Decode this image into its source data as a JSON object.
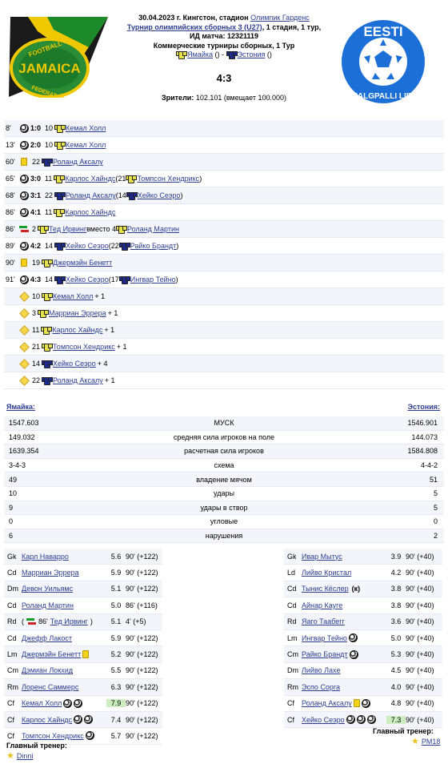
{
  "match": {
    "date_place": "30.04.2023 г. Кингстон, стадион",
    "stadium": "Олимпик Гарденс",
    "tournament": "Турнир олимпийских сборных 3 (U27)",
    "stage": ", 1 стадия, 1 тур,",
    "id_label": "ИД матча: 12321119",
    "commercial": "Коммерческие турниры сборных, 1 Тур",
    "home_link": "Ямайка",
    "home_paren": " () - ",
    "away_link": "Эстония",
    "away_paren": " ()",
    "score": "4:3",
    "attendance_label": "Зрители:",
    "attendance_value": " 102.101 (вмещает 100.000)"
  },
  "logos": {
    "left": "JAMAICA FOOTBALL FEDERATION",
    "right": "EESTI JALGPALLI LIIT"
  },
  "events": [
    {
      "min": "8'",
      "type": "goal",
      "score": "1:0",
      "num": "10",
      "team": "jam",
      "player": "Кемал Холл"
    },
    {
      "min": "13'",
      "type": "goal",
      "score": "2:0",
      "num": "10",
      "team": "jam",
      "player": "Кемал Холл"
    },
    {
      "min": "60'",
      "type": "card",
      "num": "22",
      "team": "est",
      "player": "Роланд Аксалу"
    },
    {
      "min": "65'",
      "type": "goal",
      "score": "3:0",
      "num": "11",
      "team": "jam",
      "player": "Карлос Хайндс",
      "assist_prefix": " (21 ",
      "assist_team": "jam",
      "assist": "Томпсон Хендрикс",
      "assist_suffix": ")"
    },
    {
      "min": "68'",
      "type": "goal",
      "score": "3:1",
      "num": "22",
      "team": "est",
      "player": "Роланд Аксалу",
      "assist_prefix": " (14 ",
      "assist_team": "est",
      "assist": "Хейко Сеэро",
      "assist_suffix": ")"
    },
    {
      "min": "86'",
      "type": "goal",
      "score": "4:1",
      "num": "11",
      "team": "jam",
      "player": "Карлос Хайндс"
    },
    {
      "min": "86'",
      "type": "sub",
      "num": "2",
      "team": "jam",
      "player": "Тед Ирвинг",
      "sub_text": " вместо 4 ",
      "sub_team": "jam",
      "sub_player": "Роланд Мартин"
    },
    {
      "min": "89'",
      "type": "goal",
      "score": "4:2",
      "num": "14",
      "team": "est",
      "player": "Хейко Сеэро",
      "assist_prefix": " (22 ",
      "assist_team": "est",
      "assist": "Райко Брандт",
      "assist_suffix": ")"
    },
    {
      "min": "90'",
      "type": "card",
      "num": "19",
      "team": "jam",
      "player": "Джермэйн Бенетт"
    },
    {
      "min": "91'",
      "type": "goal",
      "score": "4:3",
      "num": "14",
      "team": "est",
      "player": "Хейко Сеэро",
      "assist_prefix": " (17 ",
      "assist_team": "est",
      "assist": "Ингвар Тейно",
      "assist_suffix": ")"
    },
    {
      "type": "plus",
      "num": "10",
      "team": "jam",
      "player": "Кемал Холл",
      "plus": " + 1"
    },
    {
      "type": "plus",
      "num": "3",
      "team": "jam",
      "player": "Марриан Эррера",
      "plus": " + 1"
    },
    {
      "type": "plus",
      "num": "11",
      "team": "jam",
      "player": "Карлос Хайндс",
      "plus": " + 1"
    },
    {
      "type": "plus",
      "num": "21",
      "team": "jam",
      "player": "Томпсон Хендрикс",
      "plus": " + 1"
    },
    {
      "type": "plus",
      "num": "14",
      "team": "est",
      "player": "Хейко Сеэро",
      "plus": " + 4"
    },
    {
      "type": "plus",
      "num": "22",
      "team": "est",
      "player": "Роланд Аксалу",
      "plus": " + 1"
    }
  ],
  "teams": {
    "home": "Ямайка:",
    "away": "Эстония:"
  },
  "stats": [
    {
      "home": "1547.603",
      "label": "МУСК",
      "away": "1546.901"
    },
    {
      "home": "149.032",
      "label": "средняя сила игроков на поле",
      "away": "144.073"
    },
    {
      "home": "1639.354",
      "label": "расчетная сила игроков",
      "away": "1584.808"
    },
    {
      "home": "3-4-3",
      "label": "схема",
      "away": "4-4-2"
    },
    {
      "home": "49",
      "label": "владение мячом",
      "away": "51"
    },
    {
      "home": "10",
      "label": "удары",
      "away": "5"
    },
    {
      "home": "9",
      "label": "удары в створ",
      "away": "5"
    },
    {
      "home": "0",
      "label": "угловые",
      "away": "0"
    },
    {
      "home": "6",
      "label": "нарушения",
      "away": "2"
    }
  ],
  "lineup_home": [
    {
      "pos": "Gk",
      "name": "Карл Наварро",
      "rating": "5.6",
      "mins": "90' (+122)"
    },
    {
      "pos": "Cd",
      "name": "Марриан Эррера",
      "rating": "5.9",
      "mins": "90' (+122)"
    },
    {
      "pos": "Dm",
      "name": "Девон Уильямс",
      "rating": "5.1",
      "mins": "90' (+122)"
    },
    {
      "pos": "Cd",
      "name": "Роланд Мартин",
      "rating": "5.0",
      "mins": "86' (+116)"
    },
    {
      "pos": "Rd",
      "sub_min": "86'",
      "name": "Тед Ирвинг",
      "rating": "5.1",
      "mins": "4' (+5)",
      "sub": true
    },
    {
      "pos": "Cd",
      "name": "Джефф Лакост",
      "rating": "5.9",
      "mins": "90' (+122)"
    },
    {
      "pos": "Lm",
      "name": "Джермэйн Бенетт",
      "rating": "5.2",
      "mins": "90' (+122)",
      "card": true
    },
    {
      "pos": "Cm",
      "name": "Дэмиан Локхид",
      "rating": "5.5",
      "mins": "90' (+122)"
    },
    {
      "pos": "Rm",
      "name": "Лоренс Саммерс",
      "rating": "6.3",
      "mins": "90' (+122)"
    },
    {
      "pos": "Cf",
      "name": "Кемал Холл",
      "rating": "7.9",
      "mins": "90' (+122)",
      "goals": 2,
      "best": true
    },
    {
      "pos": "Cf",
      "name": "Карлос Хайндс",
      "rating": "7.4",
      "mins": "90' (+122)",
      "goals": 2
    },
    {
      "pos": "Cf",
      "name": "Томпсон Хендрикс",
      "rating": "5.7",
      "mins": "90' (+122)",
      "goals": 1
    }
  ],
  "lineup_away": [
    {
      "pos": "Gk",
      "name": "Ивар Мытус",
      "rating": "3.9",
      "mins": "90' (+40)"
    },
    {
      "pos": "Ld",
      "name": "Лийво Кристал",
      "rating": "4.2",
      "mins": "90' (+40)"
    },
    {
      "pos": "Cd",
      "name": "Тынис Кёслер",
      "rating": "3.8",
      "mins": "90' (+40)",
      "captain": "(к)"
    },
    {
      "pos": "Cd",
      "name": "Айнар Кауге",
      "rating": "3.8",
      "mins": "90' (+40)"
    },
    {
      "pos": "Rd",
      "name": "Яаго Таабегг",
      "rating": "3.6",
      "mins": "90' (+40)"
    },
    {
      "pos": "Lm",
      "name": "Ингвар Тейно",
      "rating": "5.0",
      "mins": "90' (+40)",
      "goals": 1
    },
    {
      "pos": "Cm",
      "name": "Райко Брандт",
      "rating": "5.3",
      "mins": "90' (+40)",
      "goals": 1
    },
    {
      "pos": "Dm",
      "name": "Лийво Лахе",
      "rating": "4.5",
      "mins": "90' (+40)"
    },
    {
      "pos": "Rm",
      "name": "Эспо Сорга",
      "rating": "4.0",
      "mins": "90' (+40)"
    },
    {
      "pos": "Cf",
      "name": "Роланд Аксалу",
      "rating": "4.8",
      "mins": "90' (+40)",
      "card": true,
      "goals": 1
    },
    {
      "pos": "Cf",
      "name": "Хейко Сеэро",
      "rating": "7.3",
      "mins": "90' (+40)",
      "goals": 3,
      "best": true
    }
  ],
  "coach": {
    "home_label": "Главный тренер:",
    "home_name": "Dinni",
    "away_label": "Главный тренер:",
    "away_name": "PM18"
  }
}
